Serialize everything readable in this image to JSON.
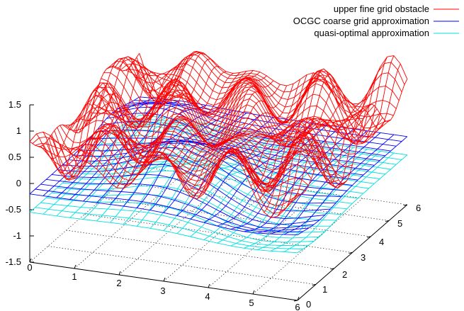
{
  "chart_data": {
    "type": "surface",
    "legend": {
      "placement": "top-right",
      "entries": [
        {
          "label": "upper fine grid obstacle",
          "color": "#ff0000"
        },
        {
          "label": "OCGC coarse grid approximation",
          "color": "#0000ff"
        },
        {
          "label": "quasi-optimal approximation",
          "color": "#00e0e0"
        }
      ]
    },
    "z_ticks": [
      "1.5",
      "1",
      "0.5",
      "0",
      "-0.5",
      "-1",
      "-1.5"
    ],
    "x_ticks": [
      "0",
      "1",
      "2",
      "3",
      "4",
      "5",
      "6"
    ],
    "y_ticks": [
      "0",
      "1",
      "2",
      "3",
      "4",
      "5",
      "6"
    ],
    "xlim": [
      0,
      6
    ],
    "ylim": [
      0,
      6
    ],
    "zlim": [
      -1.5,
      1.5
    ],
    "highlight_colors": {
      "contact_a": "#00ff00",
      "contact_b": "#ff00ff"
    },
    "series": [
      {
        "name": "upper fine grid obstacle",
        "color": "#ff0000",
        "grid": 40,
        "surface": "0.55 + 0.35*sin(3x)cos(2.6y) + 0.25*cos(4.2x+1.3y) + 0.2*sin(2.1x-2.7y)"
      },
      {
        "name": "OCGC coarse grid approximation",
        "color": "#0000ff",
        "grid": 20,
        "surface": "-0.2 + 0.55*exp(-((x-2.5)^2+(y-2.2)^2)/1.6) + 0.4*exp(-((x-1)^2+(y-4.5)^2)/1.2) - 0.35*exp(-((x-4.8)^2+(y-1.2)^2)/1.5)"
      },
      {
        "name": "quasi-optimal approximation",
        "color": "#00e0e0",
        "grid": 20,
        "surface": "-0.55 + 0.45*exp(-((x-2.5)^2+(y-2.2)^2)/1.8) + 0.3*exp(-((x-1)^2+(y-4.5)^2)/1.4) - 0.25*exp(-((x-4.8)^2+(y-1.2)^2)/1.6)"
      }
    ]
  }
}
